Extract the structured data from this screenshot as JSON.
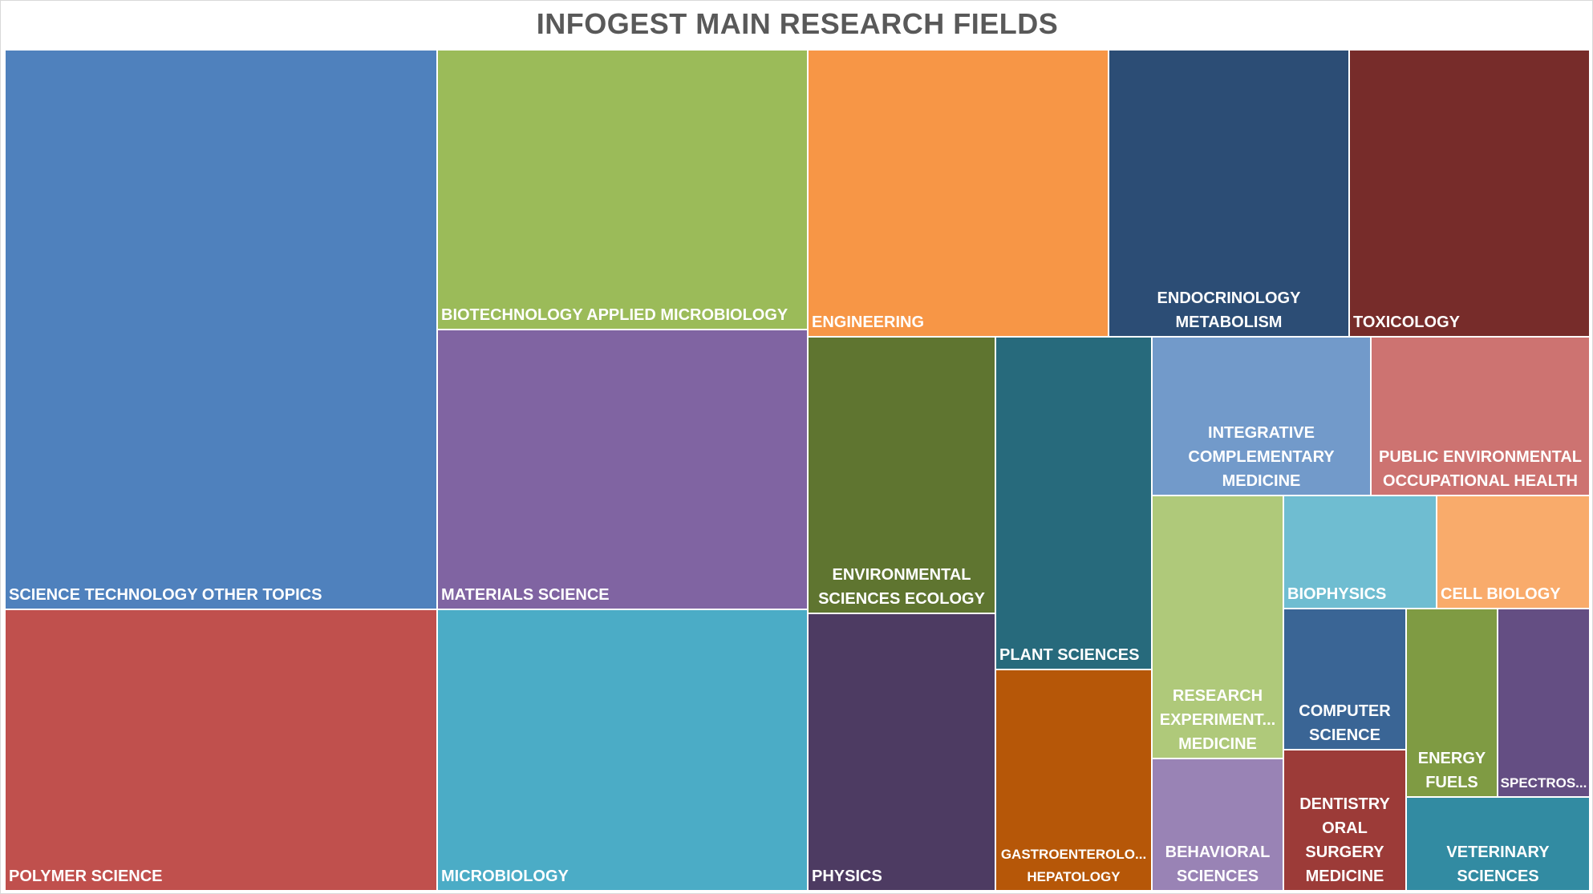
{
  "chart_data": {
    "type": "treemap",
    "title": "INFOGEST MAIN RESEARCH FIELDS",
    "categories": [
      {
        "label": "SCIENCE TECHNOLOGY OTHER TOPICS",
        "color": "#4f81bd"
      },
      {
        "label": "POLYMER SCIENCE",
        "color": "#c0504d"
      },
      {
        "label": "BIOTECHNOLOGY APPLIED MICROBIOLOGY",
        "color": "#9bbb59"
      },
      {
        "label": "MATERIALS SCIENCE",
        "color": "#8064a2"
      },
      {
        "label": "MICROBIOLOGY",
        "color": "#4bacc6"
      },
      {
        "label": "ENGINEERING",
        "color": "#f79646"
      },
      {
        "label": "ENDOCRINOLOGY METABOLISM",
        "color": "#2c4d75"
      },
      {
        "label": "TOXICOLOGY",
        "color": "#772c2a"
      },
      {
        "label": "ENVIRONMENTAL SCIENCES ECOLOGY",
        "color": "#5f7530"
      },
      {
        "label": "PHYSICS",
        "color": "#4d3b62"
      },
      {
        "label": "PLANT SCIENCES",
        "color": "#276a7c"
      },
      {
        "label": "GASTROENTEROLO... HEPATOLOGY",
        "color": "#b65708"
      },
      {
        "label": "INTEGRATIVE COMPLEMENTARY MEDICINE",
        "color": "#729aca"
      },
      {
        "label": "PUBLIC ENVIRONMENTAL OCCUPATIONAL HEALTH",
        "color": "#cd7371"
      },
      {
        "label": "RESEARCH EXPERIMENT... MEDICINE",
        "color": "#afc97a"
      },
      {
        "label": "BEHAVIORAL SCIENCES",
        "color": "#9983b5"
      },
      {
        "label": "BIOPHYSICS",
        "color": "#6fbdd1"
      },
      {
        "label": "CELL BIOLOGY",
        "color": "#f9ab6b"
      },
      {
        "label": "COMPUTER SCIENCE",
        "color": "#3a6595"
      },
      {
        "label": "DENTISTRY ORAL SURGERY MEDICINE",
        "color": "#9c3b38"
      },
      {
        "label": "ENERGY FUELS",
        "color": "#7f9b43"
      },
      {
        "label": "SPECTROS...",
        "color": "#644e83"
      },
      {
        "label": "VETERINARY SCIENCES",
        "color": "#328ba2"
      }
    ]
  }
}
